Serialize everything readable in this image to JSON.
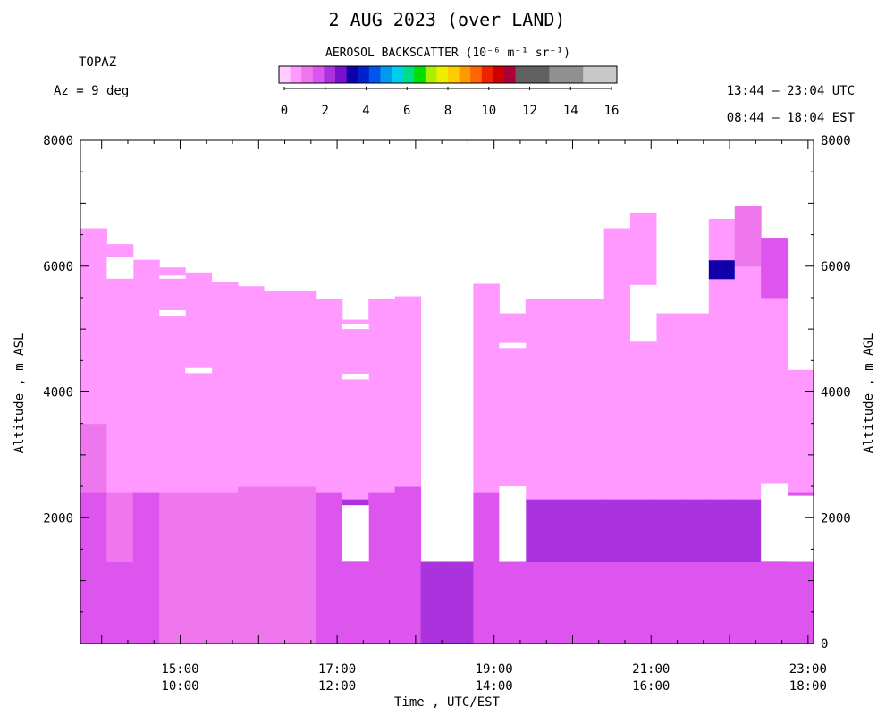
{
  "header": {
    "title": "2 AUG 2023 (over LAND)",
    "instrument": "TOPAZ",
    "azimuth": "Az =   9 deg",
    "utc_range": "13:44 – 23:04 UTC",
    "est_range": "08:44 – 18:04 EST"
  },
  "colorbar": {
    "title": "AEROSOL BACKSCATTER (10⁻⁶ m⁻¹ sr⁻¹)",
    "tick_labels": [
      "0",
      "2",
      "4",
      "6",
      "8",
      "10",
      "12",
      "14",
      "16"
    ],
    "colors": [
      "#ffccff",
      "#ff99ff",
      "#ee77ee",
      "#dd55ee",
      "#aa33dd",
      "#7711cc",
      "#1100aa",
      "#0022cc",
      "#0055ee",
      "#0099ee",
      "#00ccee",
      "#00dd88",
      "#00dd00",
      "#aaee00",
      "#eeee00",
      "#ffcc00",
      "#ff9900",
      "#ff6600",
      "#ee2200",
      "#cc0000",
      "#aa0033",
      "#606060",
      "#606060",
      "#606060",
      "#909090",
      "#909090",
      "#909090",
      "#c8c8c8",
      "#c8c8c8",
      "#c8c8c8"
    ]
  },
  "chart_data": {
    "type": "heatmap",
    "title": "2 AUG 2023 (over LAND)",
    "xlabel": "Time , UTC/EST",
    "ylabel_left": "Altitude , m ASL",
    "ylabel_right": "Altitude , m AGL",
    "x_ticks_utc": [
      "15:00",
      "17:00",
      "19:00",
      "21:00",
      "23:00"
    ],
    "x_ticks_est": [
      "10:00",
      "12:00",
      "14:00",
      "16:00",
      "18:00"
    ],
    "y_ticks_left": [
      "8000",
      "6000",
      "4000",
      "2000"
    ],
    "y_ticks_right": [
      "8000",
      "6000",
      "4000",
      "2000",
      "0"
    ],
    "xlim_utc_hours": [
      13.73,
      23.07
    ],
    "ylim_m": [
      0,
      8000
    ],
    "colorscale_range": [
      0,
      16
    ],
    "profiles": [
      {
        "t": 13.9,
        "top": 6600,
        "layers": [
          [
            0,
            2400,
            1.6
          ],
          [
            2400,
            3500,
            1.2
          ],
          [
            3500,
            6600,
            0.6
          ]
        ]
      },
      {
        "t": 14.23,
        "top": 6350,
        "layers": [
          [
            0,
            1300,
            1.6
          ],
          [
            1300,
            2400,
            1.2
          ],
          [
            2400,
            3500,
            1.0
          ],
          [
            3500,
            6350,
            0.6
          ]
        ],
        "gaps": [
          [
            5800,
            6150
          ]
        ]
      },
      {
        "t": 14.57,
        "top": 6100,
        "layers": [
          [
            0,
            2400,
            1.6
          ],
          [
            2400,
            3500,
            1.0
          ],
          [
            3500,
            6100,
            0.6
          ]
        ]
      },
      {
        "t": 14.9,
        "top": 5980,
        "layers": [
          [
            0,
            2400,
            1.4
          ],
          [
            2400,
            3400,
            1.0
          ],
          [
            3400,
            5980,
            0.6
          ]
        ],
        "gaps": [
          [
            5200,
            5300
          ],
          [
            5800,
            5850
          ]
        ]
      },
      {
        "t": 15.23,
        "top": 5900,
        "layers": [
          [
            0,
            2400,
            1.4
          ],
          [
            2400,
            3300,
            1.0
          ],
          [
            3300,
            5900,
            0.6
          ]
        ],
        "gaps": [
          [
            4300,
            4380
          ]
        ]
      },
      {
        "t": 15.57,
        "top": 5750,
        "layers": [
          [
            0,
            2400,
            1.4
          ],
          [
            2400,
            3300,
            1.0
          ],
          [
            3300,
            5750,
            0.6
          ]
        ]
      },
      {
        "t": 15.9,
        "top": 5680,
        "layers": [
          [
            0,
            2500,
            1.4
          ],
          [
            2500,
            3200,
            1.0
          ],
          [
            3200,
            5680,
            0.6
          ]
        ]
      },
      {
        "t": 16.23,
        "top": 5600,
        "layers": [
          [
            0,
            2500,
            1.4
          ],
          [
            2500,
            3300,
            1.0
          ],
          [
            3300,
            5600,
            0.6
          ]
        ]
      },
      {
        "t": 16.57,
        "top": 5600,
        "layers": [
          [
            0,
            2500,
            1.4
          ],
          [
            2500,
            3200,
            1.0
          ],
          [
            3200,
            5600,
            0.6
          ]
        ]
      },
      {
        "t": 16.9,
        "top": 5480,
        "layers": [
          [
            0,
            2400,
            1.6
          ],
          [
            2400,
            3200,
            1.0
          ],
          [
            3200,
            5480,
            0.6
          ]
        ]
      },
      {
        "t": 17.23,
        "top": 5150,
        "layers": [
          [
            0,
            900,
            1.6
          ],
          [
            900,
            1300,
            1.8
          ],
          [
            1300,
            2300,
            2.5
          ],
          [
            2300,
            3400,
            1.0
          ],
          [
            3400,
            5150,
            0.6
          ]
        ],
        "gaps": [
          [
            1300,
            2200
          ],
          [
            4200,
            4280
          ],
          [
            5000,
            5080
          ]
        ]
      },
      {
        "t": 17.57,
        "top": 5480,
        "layers": [
          [
            0,
            2400,
            1.6
          ],
          [
            2400,
            3400,
            1.0
          ],
          [
            3400,
            5480,
            0.8
          ]
        ]
      },
      {
        "t": 17.9,
        "top": 5520,
        "layers": [
          [
            0,
            1300,
            2.0
          ],
          [
            1300,
            2500,
            1.6
          ],
          [
            2500,
            3400,
            1.0
          ],
          [
            3400,
            5520,
            0.6
          ]
        ]
      },
      {
        "t": 18.23,
        "top": 1300,
        "layers": [
          [
            0,
            1300,
            2.2
          ]
        ]
      },
      {
        "t": 18.57,
        "top": 1300,
        "layers": [
          [
            0,
            1300,
            2.2
          ]
        ]
      },
      {
        "t": 18.9,
        "top": 5720,
        "layers": [
          [
            0,
            2400,
            1.8
          ],
          [
            2400,
            3500,
            1.0
          ],
          [
            3500,
            5720,
            0.6
          ]
        ]
      },
      {
        "t": 19.23,
        "top": 5250,
        "layers": [
          [
            0,
            1300,
            2.0
          ],
          [
            1300,
            2500,
            1.8
          ],
          [
            2500,
            3800,
            1.0
          ],
          [
            3800,
            5250,
            0.6
          ]
        ],
        "gaps": [
          [
            1300,
            2500
          ],
          [
            4700,
            4780
          ]
        ]
      },
      {
        "t": 19.57,
        "top": 5480,
        "layers": [
          [
            0,
            1300,
            2.0
          ],
          [
            1300,
            2300,
            2.6
          ],
          [
            2300,
            3600,
            1.0
          ],
          [
            3600,
            5480,
            0.6
          ]
        ]
      },
      {
        "t": 19.9,
        "top": 5480,
        "layers": [
          [
            0,
            1300,
            2.0
          ],
          [
            1300,
            2300,
            2.6
          ],
          [
            2300,
            3600,
            1.0
          ],
          [
            3600,
            5480,
            0.6
          ]
        ]
      },
      {
        "t": 20.23,
        "top": 5480,
        "layers": [
          [
            0,
            1300,
            2.0
          ],
          [
            1300,
            2300,
            2.4
          ],
          [
            2300,
            3600,
            1.0
          ],
          [
            3600,
            5480,
            0.6
          ]
        ]
      },
      {
        "t": 20.57,
        "top": 6600,
        "layers": [
          [
            0,
            1300,
            2.0
          ],
          [
            1300,
            2300,
            2.2
          ],
          [
            2300,
            3700,
            1.0
          ],
          [
            3700,
            5400,
            0.6
          ],
          [
            5400,
            6600,
            1.0
          ]
        ]
      },
      {
        "t": 20.9,
        "top": 6850,
        "layers": [
          [
            0,
            1300,
            2.0
          ],
          [
            1300,
            2300,
            2.2
          ],
          [
            2300,
            3700,
            1.0
          ],
          [
            3700,
            5700,
            0.6
          ],
          [
            5700,
            6850,
            1.0
          ]
        ],
        "gaps": [
          [
            4800,
            5700
          ]
        ]
      },
      {
        "t": 21.23,
        "top": 5250,
        "layers": [
          [
            0,
            1300,
            2.0
          ],
          [
            1300,
            2300,
            2.2
          ],
          [
            2300,
            3700,
            1.0
          ],
          [
            3700,
            5250,
            0.6
          ]
        ]
      },
      {
        "t": 21.57,
        "top": 5250,
        "layers": [
          [
            0,
            1300,
            2.0
          ],
          [
            1300,
            2300,
            2.2
          ],
          [
            2300,
            3700,
            1.0
          ],
          [
            3700,
            5250,
            0.6
          ]
        ]
      },
      {
        "t": 21.9,
        "top": 6750,
        "layers": [
          [
            0,
            1300,
            2.0
          ],
          [
            1300,
            2300,
            2.4
          ],
          [
            2300,
            3700,
            1.0
          ],
          [
            3700,
            5800,
            0.6
          ],
          [
            5800,
            6100,
            3.2
          ],
          [
            6100,
            6750,
            1.0
          ]
        ]
      },
      {
        "t": 22.23,
        "top": 6950,
        "layers": [
          [
            0,
            1300,
            2.0
          ],
          [
            1300,
            2300,
            2.4
          ],
          [
            2300,
            3700,
            1.0
          ],
          [
            3700,
            6000,
            0.6
          ],
          [
            6000,
            6950,
            1.2
          ]
        ]
      },
      {
        "t": 22.57,
        "top": 6450,
        "layers": [
          [
            0,
            1300,
            2.0
          ],
          [
            1300,
            2300,
            2.6
          ],
          [
            2300,
            3400,
            1.0
          ],
          [
            3400,
            5500,
            0.6
          ],
          [
            5500,
            6450,
            1.6
          ]
        ],
        "gaps": [
          [
            1300,
            2550
          ]
        ]
      },
      {
        "t": 22.9,
        "top": 4350,
        "layers": [
          [
            0,
            1300,
            2.0
          ],
          [
            1300,
            2400,
            1.8
          ],
          [
            2400,
            3500,
            1.0
          ],
          [
            3500,
            4350,
            0.6
          ]
        ],
        "gaps": [
          [
            1300,
            2350
          ]
        ]
      }
    ]
  }
}
